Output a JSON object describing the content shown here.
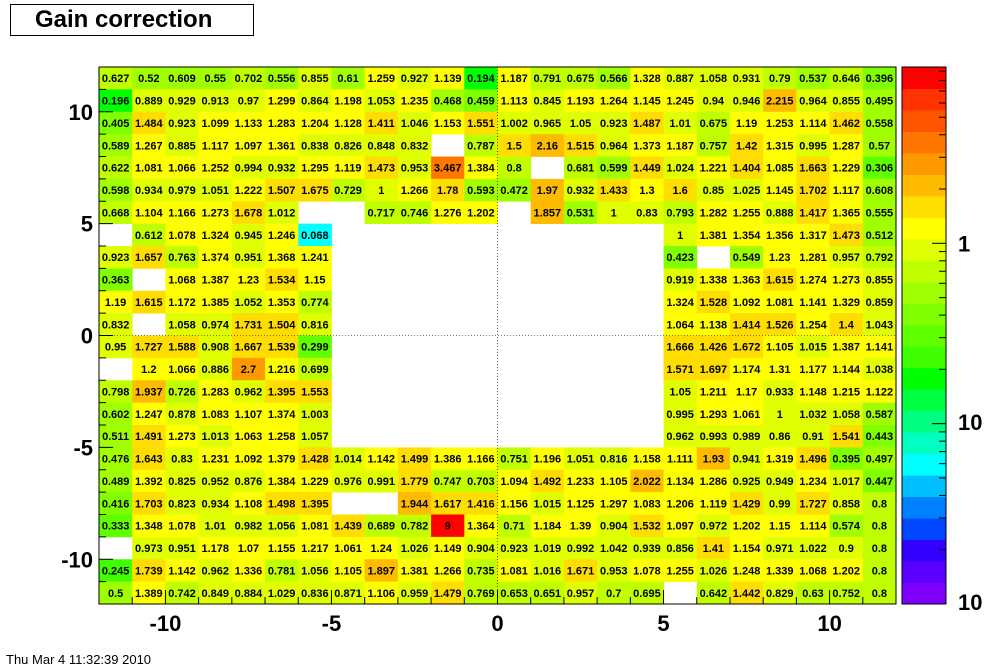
{
  "title": "Gain correction",
  "datestamp": "Thu Mar  4 11:32:39 2010",
  "chart_data": {
    "type": "heatmap",
    "title": "Gain correction",
    "xlabel": "",
    "ylabel": "",
    "xlim": [
      -12,
      12
    ],
    "ylim": [
      -12,
      12
    ],
    "x_ticks": [
      {
        "v": -10,
        "label": "-10"
      },
      {
        "v": -5,
        "label": "-5"
      },
      {
        "v": 0,
        "label": "0"
      },
      {
        "v": 5,
        "label": "5"
      },
      {
        "v": 10,
        "label": "10"
      }
    ],
    "y_ticks": [
      {
        "v": 10,
        "label": "10"
      },
      {
        "v": 5,
        "label": "5"
      },
      {
        "v": 0,
        "label": "0"
      },
      {
        "v": -5,
        "label": "-5"
      },
      {
        "v": -10,
        "label": "-10"
      }
    ],
    "color_scale": "log",
    "colorbar_labels": [
      "1",
      "10",
      "10"
    ],
    "palette": [
      "#7f00ff",
      "#5b00ff",
      "#3300ff",
      "#0046ff",
      "#0080ff",
      "#00bfff",
      "#00ffff",
      "#00ffc0",
      "#00ff80",
      "#00ff40",
      "#00ff00",
      "#40ff00",
      "#60ff00",
      "#80ff00",
      "#a0ff00",
      "#c0ff00",
      "#e0ff00",
      "#ffff00",
      "#ffdd00",
      "#ffbb00",
      "#ff9900",
      "#ff7700",
      "#ff5500",
      "#ff3300",
      "#ff0000"
    ],
    "gridline_color": "#000000",
    "x_edges_from": -12,
    "y_edges_from": -12,
    "bin_width": 1,
    "rows_top_to_bottom": [
      [
        "0.627",
        "0.52",
        "0.609",
        "0.55",
        "0.702",
        "0.556",
        "0.855",
        "0.61",
        "1.259",
        "0.927",
        "1.139",
        "0.194",
        "1.187",
        "0.791",
        "0.675",
        "0.566",
        "1.328",
        "0.887",
        "1.058",
        "0.931",
        "0.79",
        "0.537",
        "0.646",
        "0.396"
      ],
      [
        "0.196",
        "0.889",
        "0.929",
        "0.913",
        "0.97",
        "1.299",
        "0.864",
        "1.198",
        "1.053",
        "1.235",
        "0.468",
        "0.459",
        "1.113",
        "0.845",
        "1.193",
        "1.264",
        "1.145",
        "1.245",
        "0.94",
        "0.946",
        "2.215",
        "0.964",
        "0.855",
        "0.495"
      ],
      [
        "0.405",
        "1.484",
        "0.923",
        "1.099",
        "1.133",
        "1.283",
        "1.204",
        "1.128",
        "1.411",
        "1.046",
        "1.153",
        "1.551",
        "1.002",
        "0.965",
        "1.05",
        "0.923",
        "1.487",
        "1.01",
        "0.675",
        "1.19",
        "1.253",
        "1.114",
        "1.462",
        "0.558"
      ],
      [
        "0.589",
        "1.267",
        "0.885",
        "1.117",
        "1.097",
        "1.361",
        "0.838",
        "0.826",
        "0.848",
        "0.832",
        "",
        "0.787",
        "1.5",
        "2.16",
        "1.515",
        "0.964",
        "1.373",
        "1.187",
        "0.757",
        "1.42",
        "1.315",
        "0.995",
        "1.287",
        "0.57"
      ],
      [
        "0.622",
        "1.081",
        "1.066",
        "1.252",
        "0.994",
        "0.932",
        "1.295",
        "1.119",
        "1.473",
        "0.953",
        "3.467",
        "1.384",
        "0.8",
        "",
        "0.681",
        "0.599",
        "1.449",
        "1.024",
        "1.221",
        "1.404",
        "1.085",
        "1.663",
        "1.229",
        "0.306"
      ],
      [
        "0.598",
        "0.934",
        "0.979",
        "1.051",
        "1.222",
        "1.507",
        "1.675",
        "0.729",
        "1",
        "1.266",
        "1.78",
        "0.593",
        "0.472",
        "1.97",
        "0.932",
        "1.433",
        "1.3",
        "1.6",
        "0.85",
        "1.025",
        "1.145",
        "1.702",
        "1.117",
        "0.608"
      ],
      [
        "0.668",
        "1.104",
        "1.166",
        "1.273",
        "1.678",
        "1.012",
        "",
        "",
        "0.717",
        "0.746",
        "1.276",
        "1.202",
        "",
        "1.857",
        "0.531",
        "1",
        "0.83",
        "0.793",
        "1.282",
        "1.255",
        "0.888",
        "1.417",
        "1.365",
        "0.555"
      ],
      [
        "",
        "0.612",
        "1.078",
        "1.324",
        "0.945",
        "1.246",
        "0.068",
        "",
        "",
        "",
        "",
        "",
        "",
        "",
        "",
        "",
        "",
        "1",
        "1.381",
        "1.354",
        "1.356",
        "1.317",
        "1.473",
        "0.512"
      ],
      [
        "0.923",
        "1.657",
        "0.763",
        "1.374",
        "0.951",
        "1.368",
        "1.241",
        "",
        "",
        "",
        "",
        "",
        "",
        "",
        "",
        "",
        "",
        "0.423",
        "",
        "0.549",
        "1.23",
        "1.281",
        "0.957",
        "0.792"
      ],
      [
        "0.363",
        "",
        "1.068",
        "1.387",
        "1.23",
        "1.534",
        "1.15",
        "",
        "",
        "",
        "",
        "",
        "",
        "",
        "",
        "",
        "",
        "0.919",
        "1.338",
        "1.363",
        "1.615",
        "1.274",
        "1.273",
        "0.855"
      ],
      [
        "1.19",
        "1.615",
        "1.172",
        "1.385",
        "1.052",
        "1.353",
        "0.774",
        "",
        "",
        "",
        "",
        "",
        "",
        "",
        "",
        "",
        "",
        "1.324",
        "1.528",
        "1.092",
        "1.081",
        "1.141",
        "1.329",
        "0.859"
      ],
      [
        "0.832",
        "",
        "1.058",
        "0.974",
        "1.731",
        "1.504",
        "0.816",
        "",
        "",
        "",
        "",
        "",
        "",
        "",
        "",
        "",
        "",
        "1.064",
        "1.138",
        "1.414",
        "1.526",
        "1.254",
        "1.4",
        "1.043"
      ],
      [
        "0.95",
        "1.727",
        "1.588",
        "0.908",
        "1.667",
        "1.539",
        "0.299",
        "",
        "",
        "",
        "",
        "",
        "",
        "",
        "",
        "",
        "",
        "1.666",
        "1.426",
        "1.672",
        "1.105",
        "1.015",
        "1.387",
        "1.141"
      ],
      [
        "",
        "1.2",
        "1.066",
        "0.886",
        "2.7",
        "1.216",
        "0.699",
        "",
        "",
        "",
        "",
        "",
        "",
        "",
        "",
        "",
        "",
        "1.571",
        "1.697",
        "1.174",
        "1.31",
        "1.177",
        "1.144",
        "1.038"
      ],
      [
        "0.798",
        "1.937",
        "0.726",
        "1.283",
        "0.962",
        "1.395",
        "1.553",
        "",
        "",
        "",
        "",
        "",
        "",
        "",
        "",
        "",
        "",
        "1.05",
        "1.211",
        "1.17",
        "0.933",
        "1.148",
        "1.215",
        "1.122"
      ],
      [
        "0.602",
        "1.247",
        "0.878",
        "1.083",
        "1.107",
        "1.374",
        "1.003",
        "",
        "",
        "",
        "",
        "",
        "",
        "",
        "",
        "",
        "",
        "0.995",
        "1.293",
        "1.061",
        "1",
        "1.032",
        "1.058",
        "0.587"
      ],
      [
        "0.511",
        "1.491",
        "1.273",
        "1.013",
        "1.063",
        "1.258",
        "1.057",
        "",
        "",
        "",
        "",
        "",
        "",
        "",
        "",
        "",
        "",
        "0.962",
        "0.993",
        "0.989",
        "0.86",
        "0.91",
        "1.541",
        "0.443"
      ],
      [
        "0.476",
        "1.643",
        "0.83",
        "1.231",
        "1.092",
        "1.379",
        "1.428",
        "1.014",
        "1.142",
        "1.499",
        "1.386",
        "1.166",
        "0.751",
        "1.196",
        "1.051",
        "0.816",
        "1.158",
        "1.111",
        "1.93",
        "0.941",
        "1.319",
        "1.496",
        "0.395",
        "0.497"
      ],
      [
        "0.489",
        "1.392",
        "0.825",
        "0.952",
        "0.876",
        "1.384",
        "1.229",
        "0.976",
        "0.991",
        "1.779",
        "0.747",
        "0.703",
        "1.094",
        "1.492",
        "1.233",
        "1.105",
        "2.022",
        "1.134",
        "1.286",
        "0.925",
        "0.949",
        "1.234",
        "1.017",
        "0.447"
      ],
      [
        "0.416",
        "1.703",
        "0.823",
        "0.934",
        "1.108",
        "1.498",
        "1.395",
        "",
        "",
        "1.944",
        "1.617",
        "1.416",
        "1.156",
        "1.015",
        "1.125",
        "1.297",
        "1.083",
        "1.206",
        "1.119",
        "1.429",
        "0.99",
        "1.727",
        "0.858",
        "0.8"
      ],
      [
        "0.333",
        "1.348",
        "1.078",
        "1.01",
        "0.982",
        "1.056",
        "1.081",
        "1.439",
        "0.689",
        "0.782",
        "9",
        "1.364",
        "0.71",
        "1.184",
        "1.39",
        "0.904",
        "1.532",
        "1.097",
        "0.972",
        "1.202",
        "1.15",
        "1.114",
        "0.574",
        "0.8"
      ],
      [
        "",
        "0.973",
        "0.951",
        "1.178",
        "1.07",
        "1.155",
        "1.217",
        "1.061",
        "1.24",
        "1.026",
        "1.149",
        "0.904",
        "0.923",
        "1.019",
        "0.992",
        "1.042",
        "0.939",
        "0.856",
        "1.41",
        "1.154",
        "0.971",
        "1.022",
        "0.9",
        "0.8"
      ],
      [
        "0.245",
        "1.739",
        "1.142",
        "0.962",
        "1.336",
        "0.781",
        "1.056",
        "1.105",
        "1.897",
        "1.381",
        "1.266",
        "0.735",
        "1.081",
        "1.016",
        "1.671",
        "0.953",
        "1.078",
        "1.255",
        "1.026",
        "1.248",
        "1.339",
        "1.068",
        "1.202",
        "0.8"
      ],
      [
        "0.5",
        "1.389",
        "0.742",
        "0.849",
        "0.884",
        "1.029",
        "0.836",
        "0.871",
        "1.106",
        "0.959",
        "1.479",
        "0.769",
        "0.653",
        "0.651",
        "0.957",
        "0.7",
        "0.695",
        "",
        "0.642",
        "1.442",
        "0.829",
        "0.63",
        "0.752",
        "0.8"
      ]
    ]
  }
}
